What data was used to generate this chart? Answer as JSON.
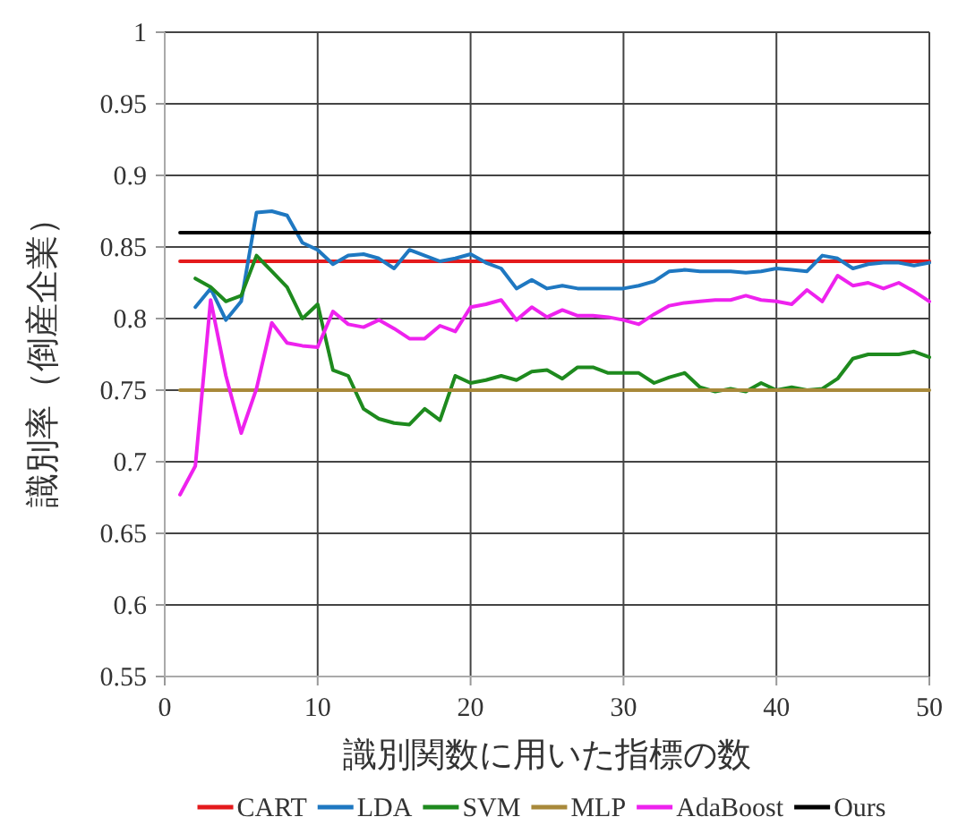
{
  "chart_data": {
    "type": "line",
    "xlabel": "識別関数に用いた指標の数",
    "ylabel": "識別率（倒産企業）",
    "xlim": [
      0,
      50
    ],
    "ylim": [
      0.55,
      1
    ],
    "xticks": [
      0,
      10,
      20,
      30,
      40,
      50
    ],
    "yticks": [
      0.55,
      0.6,
      0.65,
      0.7,
      0.75,
      0.8,
      0.85,
      0.9,
      0.95,
      1
    ],
    "grid": true,
    "legend": "bottom",
    "line_style": "solid",
    "x": [
      1,
      2,
      3,
      4,
      5,
      6,
      7,
      8,
      9,
      10,
      11,
      12,
      13,
      14,
      15,
      16,
      17,
      18,
      19,
      20,
      21,
      22,
      23,
      24,
      25,
      26,
      27,
      28,
      29,
      30,
      31,
      32,
      33,
      34,
      35,
      36,
      37,
      38,
      39,
      40,
      41,
      42,
      43,
      44,
      45,
      46,
      47,
      48,
      49,
      50
    ],
    "series": [
      {
        "name": "CART",
        "color": "#e41a1c",
        "values": [
          0.84,
          0.84,
          0.84,
          0.84,
          0.84,
          0.84,
          0.84,
          0.84,
          0.84,
          0.84,
          0.84,
          0.84,
          0.84,
          0.84,
          0.84,
          0.84,
          0.84,
          0.84,
          0.84,
          0.84,
          0.84,
          0.84,
          0.84,
          0.84,
          0.84,
          0.84,
          0.84,
          0.84,
          0.84,
          0.84,
          0.84,
          0.84,
          0.84,
          0.84,
          0.84,
          0.84,
          0.84,
          0.84,
          0.84,
          0.84,
          0.84,
          0.84,
          0.84,
          0.84,
          0.84,
          0.84,
          0.84,
          0.84,
          0.84,
          0.84
        ]
      },
      {
        "name": "LDA",
        "color": "#1f78c1",
        "values": [
          null,
          0.808,
          0.821,
          0.799,
          0.812,
          0.874,
          0.875,
          0.872,
          0.853,
          0.848,
          0.838,
          0.844,
          0.845,
          0.842,
          0.835,
          0.848,
          0.844,
          0.84,
          0.842,
          0.845,
          0.839,
          0.835,
          0.821,
          0.827,
          0.821,
          0.823,
          0.821,
          0.821,
          0.821,
          0.821,
          0.823,
          0.826,
          0.833,
          0.834,
          0.833,
          0.833,
          0.833,
          0.832,
          0.833,
          0.835,
          0.834,
          0.833,
          0.844,
          0.842,
          0.835,
          0.838,
          0.839,
          0.839,
          0.837,
          0.839
        ]
      },
      {
        "name": "SVM",
        "color": "#1e8a1e",
        "values": [
          null,
          0.828,
          0.822,
          0.812,
          0.816,
          0.844,
          0.833,
          0.822,
          0.8,
          0.81,
          0.764,
          0.76,
          0.737,
          0.73,
          0.727,
          0.726,
          0.737,
          0.729,
          0.76,
          0.755,
          0.757,
          0.76,
          0.757,
          0.763,
          0.764,
          0.758,
          0.766,
          0.766,
          0.762,
          0.762,
          0.762,
          0.755,
          0.759,
          0.762,
          0.752,
          0.749,
          0.751,
          0.749,
          0.755,
          0.75,
          0.752,
          0.75,
          0.751,
          0.758,
          0.772,
          0.775,
          0.775,
          0.775,
          0.777,
          0.773
        ]
      },
      {
        "name": "MLP",
        "color": "#a8893a",
        "values": [
          0.75,
          0.75,
          0.75,
          0.75,
          0.75,
          0.75,
          0.75,
          0.75,
          0.75,
          0.75,
          0.75,
          0.75,
          0.75,
          0.75,
          0.75,
          0.75,
          0.75,
          0.75,
          0.75,
          0.75,
          0.75,
          0.75,
          0.75,
          0.75,
          0.75,
          0.75,
          0.75,
          0.75,
          0.75,
          0.75,
          0.75,
          0.75,
          0.75,
          0.75,
          0.75,
          0.75,
          0.75,
          0.75,
          0.75,
          0.75,
          0.75,
          0.75,
          0.75,
          0.75,
          0.75,
          0.75,
          0.75,
          0.75,
          0.75,
          0.75
        ]
      },
      {
        "name": "AdaBoost",
        "color": "#ee22ee",
        "values": [
          0.677,
          0.697,
          0.813,
          0.76,
          0.72,
          0.751,
          0.797,
          0.783,
          0.781,
          0.78,
          0.805,
          0.796,
          0.794,
          0.799,
          0.793,
          0.786,
          0.786,
          0.795,
          0.791,
          0.808,
          0.81,
          0.813,
          0.799,
          0.808,
          0.801,
          0.806,
          0.802,
          0.802,
          0.801,
          0.799,
          0.796,
          0.803,
          0.809,
          0.811,
          0.812,
          0.813,
          0.813,
          0.816,
          0.813,
          0.812,
          0.81,
          0.82,
          0.812,
          0.83,
          0.823,
          0.825,
          0.821,
          0.825,
          0.819,
          0.812
        ]
      },
      {
        "name": "Ours",
        "color": "#000000",
        "values": [
          0.86,
          0.86,
          0.86,
          0.86,
          0.86,
          0.86,
          0.86,
          0.86,
          0.86,
          0.86,
          0.86,
          0.86,
          0.86,
          0.86,
          0.86,
          0.86,
          0.86,
          0.86,
          0.86,
          0.86,
          0.86,
          0.86,
          0.86,
          0.86,
          0.86,
          0.86,
          0.86,
          0.86,
          0.86,
          0.86,
          0.86,
          0.86,
          0.86,
          0.86,
          0.86,
          0.86,
          0.86,
          0.86,
          0.86,
          0.86,
          0.86,
          0.86,
          0.86,
          0.86,
          0.86,
          0.86,
          0.86,
          0.86,
          0.86,
          0.86
        ]
      }
    ]
  }
}
